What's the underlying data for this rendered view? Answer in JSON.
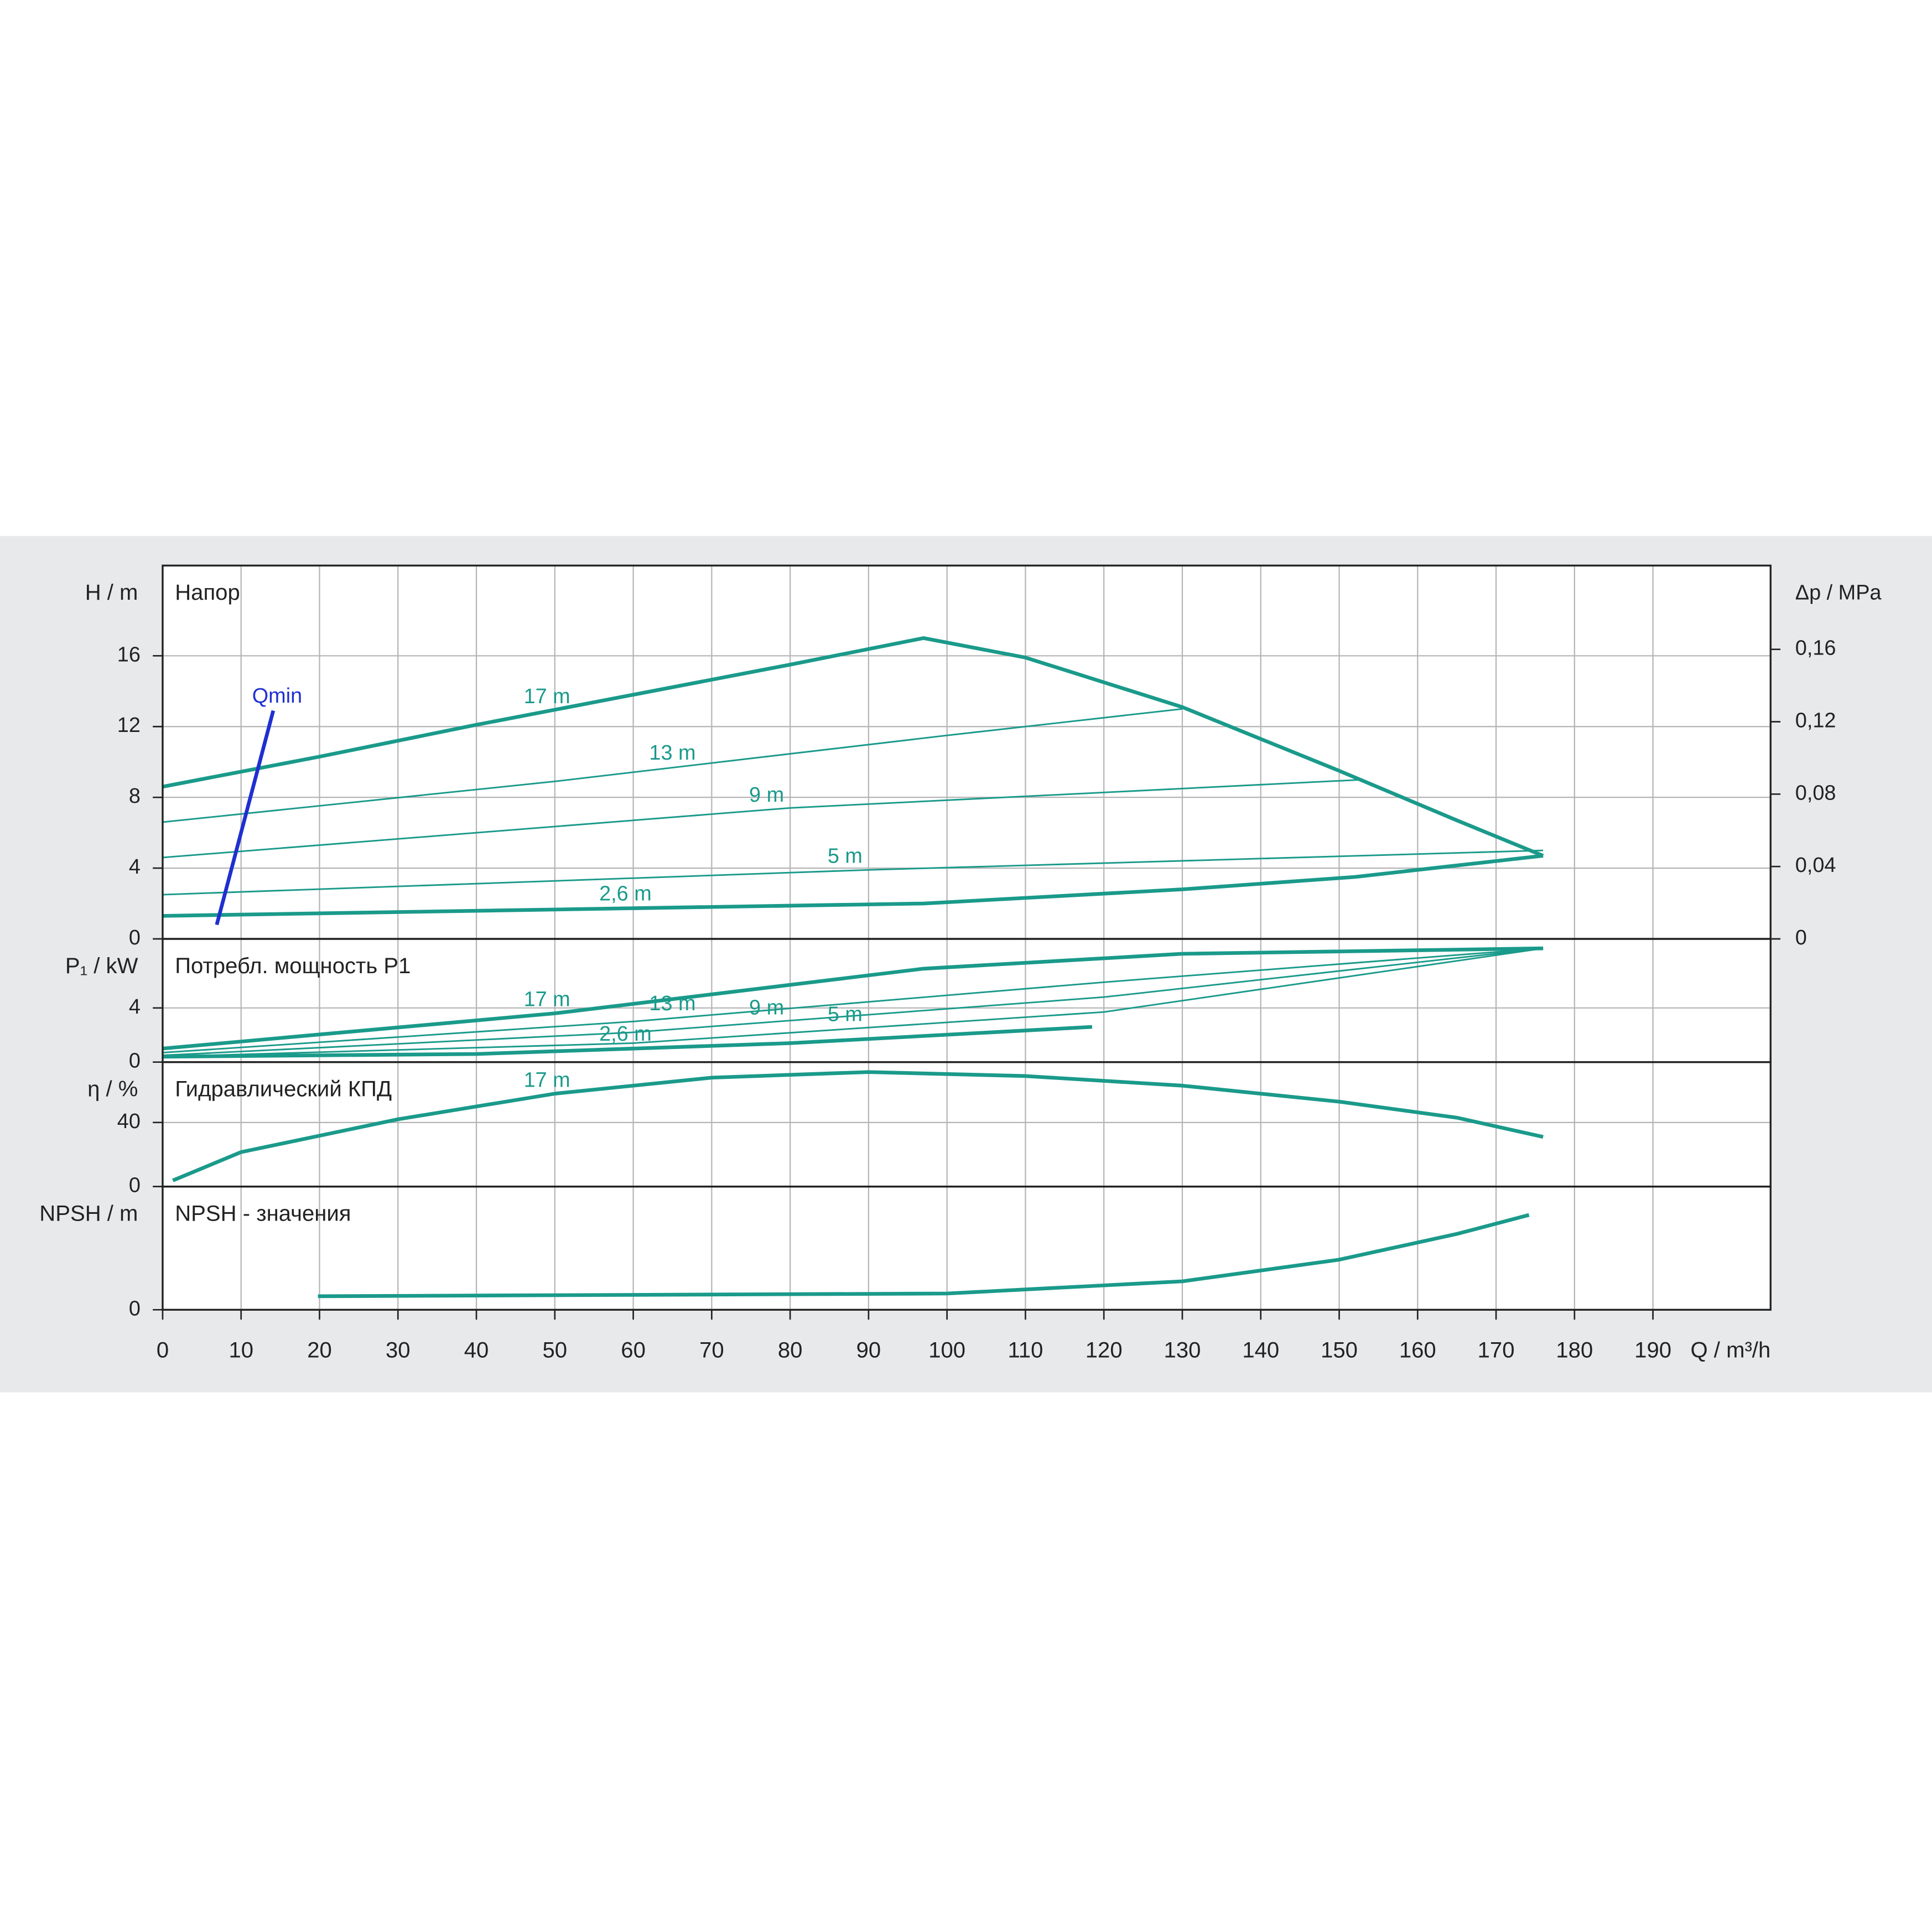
{
  "chart_data": [
    {
      "type": "line",
      "title": "Напор",
      "ylabel": "H / m",
      "y2label": "Δp / MPa",
      "xlim": [
        0,
        205
      ],
      "ylim": [
        0,
        21.1
      ],
      "yticks": [
        0,
        4,
        8,
        12,
        16
      ],
      "y2lim": [
        0,
        0.2063
      ],
      "y2ticks": [
        0,
        {
          "value": 0.04,
          "label": "0,04"
        },
        {
          "value": 0.08,
          "label": "0,08"
        },
        {
          "value": 0.12,
          "label": "0,12"
        },
        {
          "value": 0.16,
          "label": "0,16"
        }
      ],
      "grid": true,
      "series": [
        {
          "name": "17 m",
          "color": "#1a9a8a",
          "linewidth": 3,
          "x": [
            0,
            20,
            40,
            60,
            80,
            97,
            110,
            130,
            150,
            165,
            176
          ],
          "values": [
            8.6,
            10.3,
            12.1,
            13.8,
            15.5,
            17.0,
            15.9,
            13.1,
            9.5,
            6.7,
            4.7
          ]
        },
        {
          "name": "13 m",
          "color": "#1a9a8a",
          "linewidth": 1.3,
          "x": [
            0,
            50,
            100,
            130
          ],
          "values": [
            6.6,
            8.9,
            11.5,
            13.0
          ]
        },
        {
          "name": "9 m",
          "color": "#1a9a8a",
          "linewidth": 1.3,
          "x": [
            0,
            80,
            153
          ],
          "values": [
            4.6,
            7.4,
            9.0
          ]
        },
        {
          "name": "5 m",
          "color": "#1a9a8a",
          "linewidth": 1.3,
          "x": [
            0,
            90,
            176
          ],
          "values": [
            2.5,
            3.9,
            5.0
          ]
        },
        {
          "name": "2,6 m",
          "color": "#1a9a8a",
          "linewidth": 3,
          "x": [
            0,
            97,
            130,
            152,
            176
          ],
          "values": [
            1.3,
            2.0,
            2.8,
            3.5,
            4.7
          ]
        },
        {
          "name": "Qmin",
          "color": "#1f2fd0",
          "linewidth": 3,
          "x": [
            6.9,
            14.1
          ],
          "values": [
            0.8,
            12.9
          ]
        }
      ]
    },
    {
      "type": "line",
      "title": "Потребл. мощность P1",
      "ylabel": "P₁ / kW",
      "xlim": [
        0,
        205
      ],
      "ylim": [
        0,
        9.1
      ],
      "yticks": [
        0,
        4
      ],
      "grid": true,
      "series": [
        {
          "name": "17 m",
          "color": "#1a9a8a",
          "linewidth": 3,
          "x": [
            0,
            50,
            97,
            130,
            176
          ],
          "values": [
            1.0,
            3.6,
            6.9,
            8.0,
            8.4
          ]
        },
        {
          "name": "13 m",
          "color": "#1a9a8a",
          "linewidth": 1.3,
          "x": [
            0,
            60,
            120,
            176
          ],
          "values": [
            0.7,
            3.0,
            5.9,
            8.4
          ]
        },
        {
          "name": "9 m",
          "color": "#1a9a8a",
          "linewidth": 1.3,
          "x": [
            0,
            60,
            120,
            176
          ],
          "values": [
            0.5,
            2.2,
            4.8,
            8.4
          ]
        },
        {
          "name": "5 m",
          "color": "#1a9a8a",
          "linewidth": 1.3,
          "x": [
            0,
            60,
            120,
            176
          ],
          "values": [
            0.4,
            1.4,
            3.7,
            8.4
          ]
        },
        {
          "name": "2,6 m",
          "color": "#1a9a8a",
          "linewidth": 3,
          "x": [
            0,
            40,
            80,
            118.5
          ],
          "values": [
            0.4,
            0.6,
            1.4,
            2.6
          ]
        }
      ]
    },
    {
      "type": "line",
      "title": "Гидравлический КПД",
      "ylabel": "η / %",
      "xlim": [
        0,
        205
      ],
      "ylim": [
        0,
        77.7
      ],
      "yticks": [
        0,
        40
      ],
      "grid": true,
      "series": [
        {
          "name": "17 m",
          "color": "#1a9a8a",
          "linewidth": 3,
          "x": [
            1.3,
            10,
            30,
            50,
            70,
            90,
            110,
            130,
            150,
            165,
            176
          ],
          "values": [
            3.8,
            21.5,
            42,
            58,
            68,
            71.5,
            69,
            63,
            53,
            43,
            31
          ]
        }
      ]
    },
    {
      "type": "line",
      "title": "NPSH - значения",
      "ylabel": "NPSH / m",
      "xlabel": "Q / m³/h",
      "xlim": [
        0,
        205
      ],
      "ylim": [
        0,
        9.1
      ],
      "yticks": [
        0
      ],
      "grid": true,
      "xticks": [
        0,
        10,
        20,
        30,
        40,
        50,
        60,
        70,
        80,
        90,
        100,
        110,
        120,
        130,
        140,
        150,
        160,
        170,
        180,
        190
      ],
      "series": [
        {
          "color": "#1a9a8a",
          "linewidth": 3,
          "x": [
            19.8,
            100,
            130,
            150,
            165,
            174.2
          ],
          "values": [
            1.0,
            1.2,
            2.1,
            3.7,
            5.6,
            7.0
          ]
        }
      ]
    }
  ]
}
